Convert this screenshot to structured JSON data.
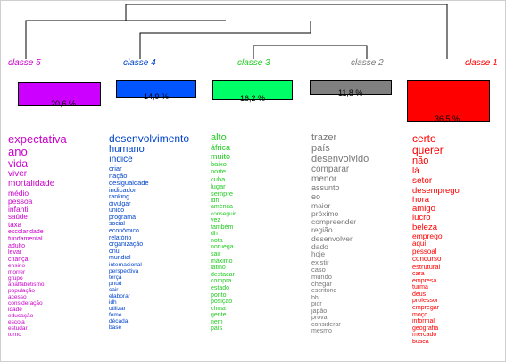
{
  "classes": [
    {
      "label": "classe 5",
      "color": "#cc00ff",
      "text_color": "#cc00cc",
      "percent": "20,6 %",
      "words": [
        {
          "t": "expectativa",
          "s": 13
        },
        {
          "t": "ano",
          "s": 13
        },
        {
          "t": "vida",
          "s": 12
        },
        {
          "t": "viver",
          "s": 10
        },
        {
          "t": "mortalidade",
          "s": 10
        },
        {
          "t": "médio",
          "s": 8.5
        },
        {
          "t": "pessoa",
          "s": 8.5
        },
        {
          "t": "infantil",
          "s": 8.5
        },
        {
          "t": "saúde",
          "s": 8
        },
        {
          "t": "taxa",
          "s": 8
        },
        {
          "t": "escolaridade",
          "s": 7
        },
        {
          "t": "fundamental",
          "s": 7
        },
        {
          "t": "adulto",
          "s": 7
        },
        {
          "t": "levar",
          "s": 7
        },
        {
          "t": "criança",
          "s": 7
        },
        {
          "t": "ensino",
          "s": 6.5
        },
        {
          "t": "morrer",
          "s": 6.5
        },
        {
          "t": "grupo",
          "s": 6.5
        },
        {
          "t": "analfabetismo",
          "s": 6.5
        },
        {
          "t": "população",
          "s": 6.5
        },
        {
          "t": "acesso",
          "s": 6.5
        },
        {
          "t": "consideração",
          "s": 6.5
        },
        {
          "t": "idade",
          "s": 6.5
        },
        {
          "t": "educação",
          "s": 6.5
        },
        {
          "t": "escola",
          "s": 6.5
        },
        {
          "t": "estudar",
          "s": 6.5
        },
        {
          "t": "torno",
          "s": 6.5
        }
      ]
    },
    {
      "label": "classe 4",
      "color": "#0055ff",
      "text_color": "#0044cc",
      "percent": "14,9 %",
      "words": [
        {
          "t": "desenvolvimento",
          "s": 12
        },
        {
          "t": "humano",
          "s": 11
        },
        {
          "t": "índice",
          "s": 10
        },
        {
          "t": "criar",
          "s": 7.5
        },
        {
          "t": "nação",
          "s": 7.5
        },
        {
          "t": "desigualdade",
          "s": 7.5
        },
        {
          "t": "indicador",
          "s": 7.5
        },
        {
          "t": "ranking",
          "s": 7
        },
        {
          "t": "divulgar",
          "s": 7
        },
        {
          "t": "unido",
          "s": 7
        },
        {
          "t": "programa",
          "s": 7
        },
        {
          "t": "social",
          "s": 7
        },
        {
          "t": "econômico",
          "s": 7
        },
        {
          "t": "relatório",
          "s": 7
        },
        {
          "t": "organização",
          "s": 7
        },
        {
          "t": "onu",
          "s": 7
        },
        {
          "t": "mundial",
          "s": 7
        },
        {
          "t": "internacional",
          "s": 6.5
        },
        {
          "t": "perspectiva",
          "s": 6.5
        },
        {
          "t": "terça",
          "s": 6.5
        },
        {
          "t": "pnud",
          "s": 6.5
        },
        {
          "t": "cair",
          "s": 6.5
        },
        {
          "t": "elaborar",
          "s": 6.5
        },
        {
          "t": "idh",
          "s": 6.5
        },
        {
          "t": "utilizar",
          "s": 6.5
        },
        {
          "t": "fome",
          "s": 6.5
        },
        {
          "t": "década",
          "s": 6.5
        },
        {
          "t": "base",
          "s": 6.5
        }
      ]
    },
    {
      "label": "classe 3",
      "color": "#00ff66",
      "text_color": "#22cc22",
      "percent": "16,2 %",
      "words": [
        {
          "t": "alto",
          "s": 11
        },
        {
          "t": "áfrica",
          "s": 9
        },
        {
          "t": "muito",
          "s": 9
        },
        {
          "t": "baixo",
          "s": 7.5
        },
        {
          "t": "norte",
          "s": 7.5
        },
        {
          "t": "cuba",
          "s": 7.5
        },
        {
          "t": "lugar",
          "s": 7.5
        },
        {
          "t": "sempre",
          "s": 7.5
        },
        {
          "t": "idh",
          "s": 7
        },
        {
          "t": "américa",
          "s": 7
        },
        {
          "t": "conseguir",
          "s": 6.5
        },
        {
          "t": "vez",
          "s": 7
        },
        {
          "t": "também",
          "s": 7
        },
        {
          "t": "dh",
          "s": 7
        },
        {
          "t": "nota",
          "s": 7
        },
        {
          "t": "noruega",
          "s": 7
        },
        {
          "t": "sair",
          "s": 7
        },
        {
          "t": "máximo",
          "s": 7
        },
        {
          "t": "latino",
          "s": 7
        },
        {
          "t": "destacar",
          "s": 7
        },
        {
          "t": "compra",
          "s": 7
        },
        {
          "t": "estado",
          "s": 7
        },
        {
          "t": "ponto",
          "s": 7
        },
        {
          "t": "posição",
          "s": 7
        },
        {
          "t": "china",
          "s": 7
        },
        {
          "t": "gente",
          "s": 7
        },
        {
          "t": "nem",
          "s": 7
        },
        {
          "t": "país",
          "s": 7
        }
      ]
    },
    {
      "label": "classe 2",
      "color": "#808080",
      "text_color": "#777777",
      "percent": "11,8 %",
      "words": [
        {
          "t": "trazer",
          "s": 11
        },
        {
          "t": "país",
          "s": 11
        },
        {
          "t": "desenvolvido",
          "s": 11
        },
        {
          "t": "comparar",
          "s": 10
        },
        {
          "t": "menor",
          "s": 10
        },
        {
          "t": "assunto",
          "s": 9
        },
        {
          "t": "eo",
          "s": 9
        },
        {
          "t": "maior",
          "s": 8.5
        },
        {
          "t": "próximo",
          "s": 8.5
        },
        {
          "t": "compreender",
          "s": 8.5
        },
        {
          "t": "região",
          "s": 8.5
        },
        {
          "t": "desenvolver",
          "s": 8.5
        },
        {
          "t": "dado",
          "s": 8.5
        },
        {
          "t": "hoje",
          "s": 8
        },
        {
          "t": "existir",
          "s": 7.5
        },
        {
          "t": "caso",
          "s": 7.5
        },
        {
          "t": "mundo",
          "s": 7.5
        },
        {
          "t": "chegar",
          "s": 7.5
        },
        {
          "t": "escritório",
          "s": 7
        },
        {
          "t": "bh",
          "s": 7
        },
        {
          "t": "pior",
          "s": 7
        },
        {
          "t": "japão",
          "s": 7
        },
        {
          "t": "prova",
          "s": 7
        },
        {
          "t": "considerar",
          "s": 7
        },
        {
          "t": "mesmo",
          "s": 7
        }
      ]
    },
    {
      "label": "classe 1",
      "color": "#ff0000",
      "text_color": "#ff0000",
      "percent": "36,5 %",
      "words": [
        {
          "t": "certo",
          "s": 12
        },
        {
          "t": "querer",
          "s": 12
        },
        {
          "t": "não",
          "s": 11
        },
        {
          "t": "lá",
          "s": 10
        },
        {
          "t": "setor",
          "s": 10
        },
        {
          "t": "desemprego",
          "s": 9.5
        },
        {
          "t": "hora",
          "s": 9.5
        },
        {
          "t": "amigo",
          "s": 9.5
        },
        {
          "t": "lucro",
          "s": 9.5
        },
        {
          "t": "beleza",
          "s": 9.5
        },
        {
          "t": "emprego",
          "s": 8.5
        },
        {
          "t": "aqui",
          "s": 8
        },
        {
          "t": "pessoal",
          "s": 8
        },
        {
          "t": "concurso",
          "s": 8
        },
        {
          "t": "estrutural",
          "s": 7.5
        },
        {
          "t": "cara",
          "s": 7
        },
        {
          "t": "empresa",
          "s": 7
        },
        {
          "t": "turma",
          "s": 7
        },
        {
          "t": "deus",
          "s": 7
        },
        {
          "t": "professor",
          "s": 7
        },
        {
          "t": "empregar",
          "s": 7
        },
        {
          "t": "moço",
          "s": 7
        },
        {
          "t": "informal",
          "s": 7
        },
        {
          "t": "geografia",
          "s": 7
        },
        {
          "t": "mercado",
          "s": 7
        },
        {
          "t": "busca",
          "s": 7
        }
      ]
    }
  ]
}
